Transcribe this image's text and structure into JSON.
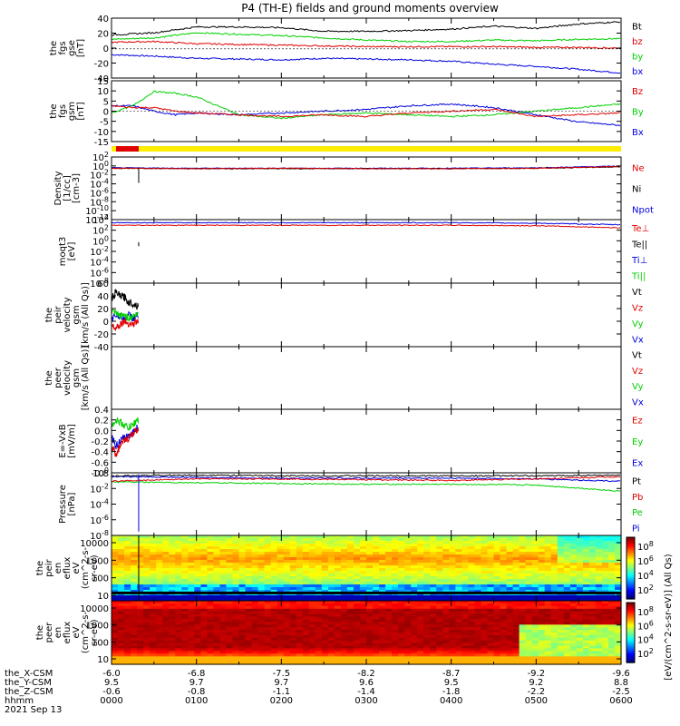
{
  "title": "P4 (TH-E) fields and ground moments overview",
  "colors": {
    "black": "#000000",
    "red": "#e00000",
    "green": "#00d000",
    "blue": "#0000e0",
    "yellow": "#ffee00"
  },
  "time_axis": {
    "ticks": [
      "0000",
      "0100",
      "0200",
      "0300",
      "0400",
      "0500",
      "0600"
    ],
    "rows": [
      {
        "label": "the_X-CSM",
        "values": [
          "-6.0",
          "-6.8",
          "-7.5",
          "-8.2",
          "-8.7",
          "-9.2",
          "-9.6"
        ]
      },
      {
        "label": "the_Y-CSM",
        "values": [
          "9.5",
          "9.7",
          "9.7",
          "9.6",
          "9.5",
          "9.2",
          "8.8"
        ]
      },
      {
        "label": "the_Z-CSM",
        "values": [
          "-0.6",
          "-0.8",
          "-1.1",
          "-1.4",
          "-1.8",
          "-2.2",
          "-2.5"
        ]
      },
      {
        "label": "hhmm",
        "values": [
          "0000",
          "0100",
          "0200",
          "0300",
          "0400",
          "0500",
          "0600"
        ]
      }
    ],
    "date": "2021 Sep 13"
  },
  "chart_data": [
    {
      "type": "line",
      "name": "fgs_gse",
      "ylabel": [
        "the",
        "fgs",
        "gse",
        "[nT]"
      ],
      "yticks": [
        "40",
        "20",
        "0",
        "-20",
        "-40"
      ],
      "ylim": [
        -40,
        42
      ],
      "legend": [
        {
          "name": "Bt",
          "color": "black"
        },
        {
          "name": "bz",
          "color": "red"
        },
        {
          "name": "by",
          "color": "green"
        },
        {
          "name": "bx",
          "color": "blue"
        }
      ],
      "x": [
        0,
        0.5,
        1,
        1.5,
        2,
        2.5,
        3,
        3.5,
        4,
        4.5,
        5,
        5.5,
        6
      ],
      "series": [
        {
          "name": "Bt",
          "values": [
            19,
            22,
            30,
            30,
            29,
            24,
            24,
            25,
            27,
            31,
            28,
            34,
            37
          ]
        },
        {
          "name": "bz",
          "values": [
            9,
            10,
            7,
            6,
            5,
            4,
            3,
            3,
            3,
            3,
            2,
            2,
            1
          ]
        },
        {
          "name": "by",
          "values": [
            13,
            15,
            22,
            20,
            18,
            15,
            12,
            10,
            10,
            12,
            11,
            13,
            14
          ]
        },
        {
          "name": "bx",
          "values": [
            -8,
            -10,
            -13,
            -14,
            -15,
            -13,
            -14,
            -15,
            -17,
            -21,
            -24,
            -28,
            -33
          ]
        }
      ]
    },
    {
      "type": "line",
      "name": "fgs_gsm",
      "ylabel": [
        "the",
        "fgs",
        "gsm",
        "[nT]"
      ],
      "yticks": [
        "15",
        "10",
        "5",
        "0",
        "-5",
        "-10",
        "-15"
      ],
      "ylim": [
        -17,
        17
      ],
      "legend": [
        {
          "name": "Bz",
          "color": "red"
        },
        {
          "name": "By",
          "color": "green"
        },
        {
          "name": "Bx",
          "color": "blue"
        }
      ],
      "x": [
        0,
        0.25,
        0.5,
        0.75,
        1,
        1.5,
        2,
        2.5,
        3,
        3.5,
        4,
        4.5,
        5,
        5.5,
        6
      ],
      "series": [
        {
          "name": "Bz",
          "values": [
            3,
            2,
            2,
            0,
            -1,
            -2,
            -3,
            -2,
            -3,
            -1,
            0,
            1,
            -3,
            -2,
            -1
          ]
        },
        {
          "name": "By",
          "values": [
            -1,
            3,
            11,
            10,
            8,
            -2,
            -4,
            -2,
            -1,
            -2,
            -3,
            -2,
            0,
            2,
            4
          ]
        },
        {
          "name": "Bx",
          "values": [
            3,
            3,
            0,
            -2,
            -1,
            -2,
            -1,
            0,
            1,
            3,
            4,
            2,
            -2,
            -6,
            -8
          ]
        }
      ]
    },
    {
      "type": "line",
      "name": "density",
      "ylabel": [
        "Density",
        "[1/cc]",
        "[cm-3]"
      ],
      "yticks": [
        "10^2",
        "10^0",
        "10^-2",
        "10^-4",
        "10^-6",
        "10^-8",
        "10^-10",
        "10^-12"
      ],
      "log": true,
      "ylim": [
        -12,
        2.5
      ],
      "legend": [
        {
          "name": "Ne",
          "color": "red"
        },
        {
          "name": "Ni",
          "color": "black"
        },
        {
          "name": "Npot",
          "color": "blue"
        }
      ],
      "x": [
        0,
        1,
        2,
        3,
        4,
        5,
        6
      ],
      "series": [
        {
          "name": "Ne",
          "values": [
            -0.1,
            -0.2,
            -0.1,
            -0.2,
            -0.2,
            -0.1,
            0.3
          ]
        },
        {
          "name": "Ni",
          "values": [
            -0.1,
            -0.2,
            -0.2,
            -0.2,
            -0.2,
            -0.1,
            0.2
          ]
        },
        {
          "name": "Npot",
          "values": [
            0.0,
            -0.1,
            -0.1,
            -0.1,
            -0.1,
            0.0,
            0.4
          ]
        }
      ]
    },
    {
      "type": "line",
      "name": "temperature",
      "ylabel": [
        "moqt3",
        "[eV]"
      ],
      "yticks": [
        "10^4",
        "10^2",
        "10^0",
        "10^-2",
        "10^-4",
        "10^-6",
        "10^-8"
      ],
      "log": true,
      "ylim": [
        -8,
        4.4
      ],
      "legend": [
        {
          "name": "Te⊥",
          "color": "red"
        },
        {
          "name": "Te||",
          "color": "black"
        },
        {
          "name": "Ti⊥",
          "color": "blue"
        },
        {
          "name": "Ti||",
          "color": "green"
        }
      ],
      "x": [
        0,
        1,
        2,
        3,
        4,
        5,
        6
      ],
      "series": [
        {
          "name": "Ti",
          "values": [
            3.8,
            3.8,
            3.8,
            3.8,
            3.8,
            3.7,
            3.4
          ]
        },
        {
          "name": "Te",
          "values": [
            3.3,
            3.3,
            3.3,
            3.3,
            3.3,
            3.2,
            2.8
          ]
        }
      ]
    },
    {
      "type": "line",
      "name": "peir_velocity",
      "ylabel": [
        "the",
        "peir",
        "velocity",
        "gsm",
        "[km/s (All Qs)]"
      ],
      "yticks": [
        "60",
        "40",
        "20",
        "0",
        "-20",
        "-40"
      ],
      "ylim": [
        -40,
        60
      ],
      "legend": [
        {
          "name": "Vt",
          "color": "black"
        },
        {
          "name": "Vz",
          "color": "red"
        },
        {
          "name": "Vy",
          "color": "green"
        },
        {
          "name": "Vx",
          "color": "blue"
        }
      ],
      "x": [
        0.0,
        0.05,
        0.1,
        0.15,
        0.2,
        0.25,
        0.3
      ],
      "series": [
        {
          "name": "Vt",
          "values": [
            35,
            45,
            40,
            38,
            30,
            28,
            25
          ]
        },
        {
          "name": "Vz",
          "values": [
            -5,
            -10,
            -5,
            0,
            -3,
            -5,
            0
          ]
        },
        {
          "name": "Vy",
          "values": [
            15,
            12,
            8,
            10,
            5,
            8,
            10
          ]
        },
        {
          "name": "Vx",
          "values": [
            5,
            10,
            8,
            5,
            10,
            5,
            8
          ]
        }
      ]
    },
    {
      "type": "line",
      "name": "peer_velocity",
      "ylabel": [
        "the",
        "peer",
        "velocity",
        "gsm",
        "[km/s (All Qs)]"
      ],
      "legend": [
        {
          "name": "Vt",
          "color": "black"
        },
        {
          "name": "Vz",
          "color": "red"
        },
        {
          "name": "Vy",
          "color": "green"
        },
        {
          "name": "Vx",
          "color": "blue"
        }
      ],
      "series": []
    },
    {
      "type": "line",
      "name": "efield",
      "ylabel": [
        "E=-VxB",
        "[mV/m]"
      ],
      "yticks": [
        "0.4",
        "0.2",
        "0.0",
        "-0.2",
        "-0.4",
        "-0.6",
        "-0.8"
      ],
      "ylim": [
        -0.8,
        0.4
      ],
      "legend": [
        {
          "name": "Ez",
          "color": "red"
        },
        {
          "name": "Ey",
          "color": "green"
        },
        {
          "name": "Ex",
          "color": "blue"
        }
      ],
      "x": [
        0.0,
        0.05,
        0.1,
        0.15,
        0.2,
        0.25,
        0.3
      ],
      "series": [
        {
          "name": "Ey",
          "values": [
            0.1,
            0.2,
            0.15,
            0.1,
            0.05,
            0.1,
            0.2
          ]
        },
        {
          "name": "Ez",
          "values": [
            -0.3,
            -0.45,
            -0.3,
            -0.2,
            -0.15,
            -0.05,
            0.0
          ]
        },
        {
          "name": "Ex",
          "values": [
            -0.1,
            -0.3,
            -0.2,
            -0.15,
            -0.1,
            -0.05,
            0.05
          ]
        }
      ]
    },
    {
      "type": "line",
      "name": "pressure",
      "ylabel": [
        "Pressure",
        "[nPa]"
      ],
      "yticks": [
        "10^0",
        "10^-2",
        "10^-4",
        "10^-6",
        "10^-8"
      ],
      "log": true,
      "ylim": [
        -8,
        0.2
      ],
      "legend": [
        {
          "name": "Pt",
          "color": "black"
        },
        {
          "name": "Pb",
          "color": "red"
        },
        {
          "name": "Pe",
          "color": "green"
        },
        {
          "name": "Pi",
          "color": "blue"
        }
      ],
      "x": [
        0,
        1,
        2,
        3,
        4,
        5,
        6
      ],
      "series": [
        {
          "name": "Pt",
          "values": [
            -0.2,
            -0.1,
            -0.2,
            -0.2,
            -0.2,
            -0.2,
            -0.1
          ]
        },
        {
          "name": "Pb",
          "values": [
            -0.9,
            -0.6,
            -0.6,
            -0.7,
            -0.8,
            -0.6,
            -0.3
          ]
        },
        {
          "name": "Pe",
          "values": [
            -1.0,
            -1.1,
            -1.2,
            -1.3,
            -1.3,
            -1.4,
            -2.2
          ]
        },
        {
          "name": "Pi",
          "values": [
            -0.3,
            -0.4,
            -0.5,
            -0.5,
            -0.5,
            -0.6,
            -0.9
          ]
        }
      ]
    },
    {
      "type": "heatmap",
      "name": "peir_en_eflux",
      "ylabel": [
        "the",
        "peir",
        "en",
        "eflux",
        "eV",
        "(cm^2-s-",
        "sr-eV)"
      ],
      "yticks": [
        "10000",
        "1000",
        "100",
        "10"
      ]
    },
    {
      "type": "heatmap",
      "name": "peer_en_eflux",
      "ylabel": [
        "the",
        "peer",
        "en",
        "eflux",
        "eV",
        "(cm^2-s-",
        "sr-eV)"
      ],
      "yticks": [
        "10000",
        "1000",
        "100",
        "10"
      ]
    }
  ],
  "colorbar": {
    "ticks": [
      "10^8",
      "10^6",
      "10^4",
      "10^2"
    ],
    "label": "[eV/(cm^2-s-sr-eV)] (All Qs)"
  }
}
